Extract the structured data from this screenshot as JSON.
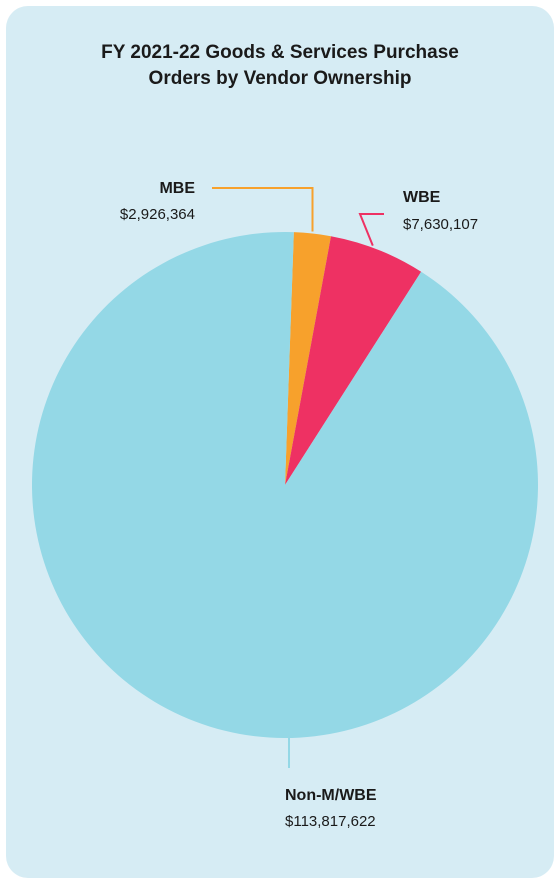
{
  "chart_data": {
    "type": "pie",
    "title_lines": [
      "FY 2021-22 Goods & Services Purchase",
      "Orders by Vendor Ownership"
    ],
    "slices": [
      {
        "label": "MBE",
        "value_text": "$2,926,364",
        "value": 2926364,
        "color": "#f7a12c"
      },
      {
        "label": "WBE",
        "value_text": "$7,630,107",
        "value": 7630107,
        "color": "#ee3163"
      },
      {
        "label": "Non-M/WBE",
        "value_text": "$113,817,622",
        "value": 113817622,
        "color": "#94d8e6"
      }
    ],
    "start_angle_deg": 2,
    "direction": "clockwise"
  },
  "colors": {
    "card_background": "#d6ecf4",
    "page_background": "#ffffff"
  }
}
